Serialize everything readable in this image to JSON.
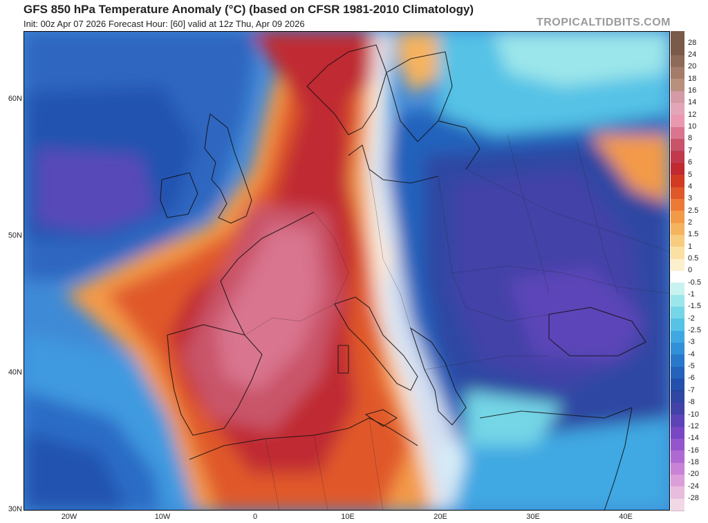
{
  "header": {
    "title": "GFS 850 hPa Temperature Anomaly (°C) (based on CFSR 1981-2010 Climatology)",
    "subtitle": "Init: 00z Apr 07 2026   Forecast Hour: [60]   valid at 12z Thu, Apr 09 2026",
    "brand": "TROPICALTIDBITS.COM"
  },
  "axes": {
    "lat_labels": [
      "60N",
      "50N",
      "40N",
      "30N"
    ],
    "lon_labels": [
      "20W",
      "10W",
      "0",
      "10E",
      "20E",
      "30E",
      "40E"
    ]
  },
  "legend": {
    "items": [
      {
        "label": "28",
        "color": "#7a5a48"
      },
      {
        "label": "24",
        "color": "#8e6b58"
      },
      {
        "label": "20",
        "color": "#a47c69"
      },
      {
        "label": "18",
        "color": "#b8907d"
      },
      {
        "label": "16",
        "color": "#d49aa6"
      },
      {
        "label": "14",
        "color": "#e2a6b8"
      },
      {
        "label": "12",
        "color": "#ea98b0"
      },
      {
        "label": "10",
        "color": "#d9758f"
      },
      {
        "label": "8",
        "color": "#c95469"
      },
      {
        "label": "7",
        "color": "#c03a4c"
      },
      {
        "label": "6",
        "color": "#c02a30"
      },
      {
        "label": "5",
        "color": "#d23a22"
      },
      {
        "label": "4",
        "color": "#e0582a"
      },
      {
        "label": "3",
        "color": "#ec7a36"
      },
      {
        "label": "2.5",
        "color": "#f39a48"
      },
      {
        "label": "2",
        "color": "#f6b35e"
      },
      {
        "label": "1.5",
        "color": "#f8cc7e"
      },
      {
        "label": "1",
        "color": "#fae0a2"
      },
      {
        "label": "0.5",
        "color": "#fcefcb"
      },
      {
        "label": "0",
        "color": "#ffffff"
      },
      {
        "label": "-0.5",
        "color": "#c8f2ef"
      },
      {
        "label": "-1",
        "color": "#9be6ea"
      },
      {
        "label": "-1.5",
        "color": "#74d6e6"
      },
      {
        "label": "-2",
        "color": "#55c2e6"
      },
      {
        "label": "-2.5",
        "color": "#3fa8e2"
      },
      {
        "label": "-3",
        "color": "#3190d8"
      },
      {
        "label": "-4",
        "color": "#2878cc"
      },
      {
        "label": "-5",
        "color": "#2462bc"
      },
      {
        "label": "-6",
        "color": "#2350ac"
      },
      {
        "label": "-7",
        "color": "#2f46a2"
      },
      {
        "label": "-8",
        "color": "#4242a8"
      },
      {
        "label": "-10",
        "color": "#5c44b8"
      },
      {
        "label": "-12",
        "color": "#7848c4"
      },
      {
        "label": "-14",
        "color": "#9456cc"
      },
      {
        "label": "-16",
        "color": "#ae6ad2"
      },
      {
        "label": "-18",
        "color": "#c882d6"
      },
      {
        "label": "-20",
        "color": "#dc9ed8"
      },
      {
        "label": "-24",
        "color": "#e8bcdc"
      },
      {
        "label": "-28",
        "color": "#f2d8e6"
      }
    ]
  }
}
